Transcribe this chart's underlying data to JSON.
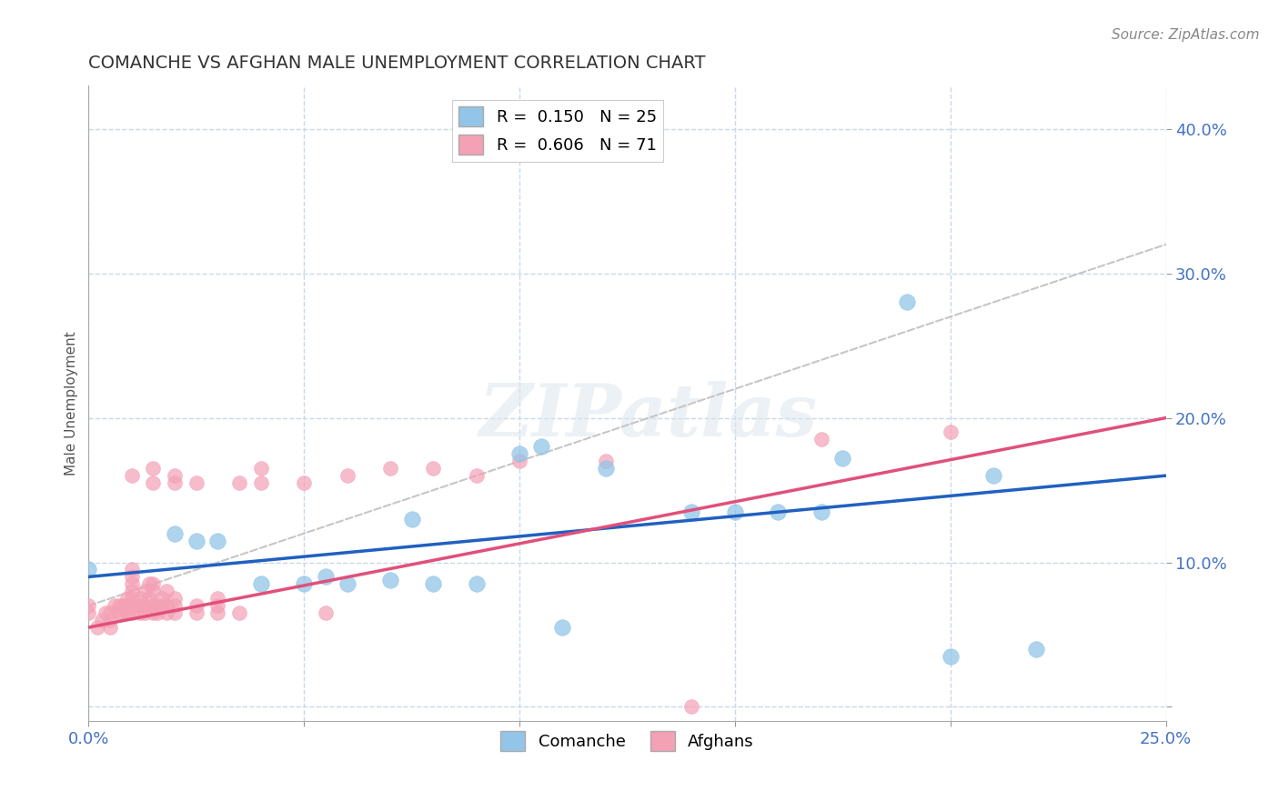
{
  "title": "COMANCHE VS AFGHAN MALE UNEMPLOYMENT CORRELATION CHART",
  "source": "Source: ZipAtlas.com",
  "ylabel": "Male Unemployment",
  "yticks": [
    0.0,
    0.1,
    0.2,
    0.3,
    0.4
  ],
  "ytick_labels": [
    "",
    "10.0%",
    "20.0%",
    "30.0%",
    "40.0%"
  ],
  "xlim": [
    0.0,
    0.25
  ],
  "ylim": [
    -0.01,
    0.43
  ],
  "legend_r1": "R =  0.150",
  "legend_n1": "N = 25",
  "legend_r2": "R =  0.606",
  "legend_n2": "N = 71",
  "comanche_color": "#92c5e8",
  "afghan_color": "#f4a0b5",
  "comanche_line_color": "#2060c0",
  "afghan_line_color": "#e0507a",
  "trend_line_color": "#c0c0c0",
  "comanche_points": [
    [
      0.0,
      0.095
    ],
    [
      0.02,
      0.12
    ],
    [
      0.025,
      0.115
    ],
    [
      0.03,
      0.115
    ],
    [
      0.04,
      0.085
    ],
    [
      0.05,
      0.085
    ],
    [
      0.055,
      0.09
    ],
    [
      0.06,
      0.085
    ],
    [
      0.07,
      0.088
    ],
    [
      0.075,
      0.13
    ],
    [
      0.08,
      0.085
    ],
    [
      0.09,
      0.085
    ],
    [
      0.1,
      0.175
    ],
    [
      0.105,
      0.18
    ],
    [
      0.11,
      0.055
    ],
    [
      0.12,
      0.165
    ],
    [
      0.14,
      0.135
    ],
    [
      0.16,
      0.135
    ],
    [
      0.175,
      0.172
    ],
    [
      0.19,
      0.28
    ],
    [
      0.2,
      0.035
    ],
    [
      0.21,
      0.16
    ],
    [
      0.15,
      0.135
    ],
    [
      0.17,
      0.135
    ],
    [
      0.22,
      0.04
    ]
  ],
  "afghan_points": [
    [
      0.0,
      0.065
    ],
    [
      0.0,
      0.07
    ],
    [
      0.002,
      0.055
    ],
    [
      0.003,
      0.06
    ],
    [
      0.004,
      0.065
    ],
    [
      0.005,
      0.055
    ],
    [
      0.005,
      0.06
    ],
    [
      0.005,
      0.065
    ],
    [
      0.006,
      0.07
    ],
    [
      0.007,
      0.065
    ],
    [
      0.007,
      0.07
    ],
    [
      0.008,
      0.065
    ],
    [
      0.008,
      0.07
    ],
    [
      0.009,
      0.065
    ],
    [
      0.009,
      0.07
    ],
    [
      0.009,
      0.075
    ],
    [
      0.01,
      0.065
    ],
    [
      0.01,
      0.07
    ],
    [
      0.01,
      0.075
    ],
    [
      0.01,
      0.08
    ],
    [
      0.01,
      0.085
    ],
    [
      0.01,
      0.09
    ],
    [
      0.01,
      0.095
    ],
    [
      0.01,
      0.16
    ],
    [
      0.012,
      0.065
    ],
    [
      0.012,
      0.07
    ],
    [
      0.012,
      0.075
    ],
    [
      0.013,
      0.065
    ],
    [
      0.013,
      0.07
    ],
    [
      0.013,
      0.08
    ],
    [
      0.014,
      0.075
    ],
    [
      0.014,
      0.085
    ],
    [
      0.015,
      0.065
    ],
    [
      0.015,
      0.07
    ],
    [
      0.015,
      0.08
    ],
    [
      0.015,
      0.085
    ],
    [
      0.015,
      0.155
    ],
    [
      0.015,
      0.165
    ],
    [
      0.016,
      0.065
    ],
    [
      0.016,
      0.07
    ],
    [
      0.017,
      0.07
    ],
    [
      0.017,
      0.075
    ],
    [
      0.018,
      0.065
    ],
    [
      0.018,
      0.07
    ],
    [
      0.018,
      0.08
    ],
    [
      0.02,
      0.065
    ],
    [
      0.02,
      0.07
    ],
    [
      0.02,
      0.075
    ],
    [
      0.02,
      0.155
    ],
    [
      0.02,
      0.16
    ],
    [
      0.025,
      0.065
    ],
    [
      0.025,
      0.07
    ],
    [
      0.025,
      0.155
    ],
    [
      0.03,
      0.065
    ],
    [
      0.03,
      0.07
    ],
    [
      0.03,
      0.075
    ],
    [
      0.035,
      0.065
    ],
    [
      0.035,
      0.155
    ],
    [
      0.04,
      0.155
    ],
    [
      0.04,
      0.165
    ],
    [
      0.05,
      0.155
    ],
    [
      0.055,
      0.065
    ],
    [
      0.06,
      0.16
    ],
    [
      0.07,
      0.165
    ],
    [
      0.08,
      0.165
    ],
    [
      0.09,
      0.16
    ],
    [
      0.1,
      0.17
    ],
    [
      0.12,
      0.17
    ],
    [
      0.14,
      0.0
    ],
    [
      0.17,
      0.185
    ],
    [
      0.2,
      0.19
    ]
  ],
  "background_color": "#ffffff",
  "plot_bg_color": "#ffffff",
  "grid_color": "#c8d8e8",
  "watermark_text": "ZIPatlas"
}
